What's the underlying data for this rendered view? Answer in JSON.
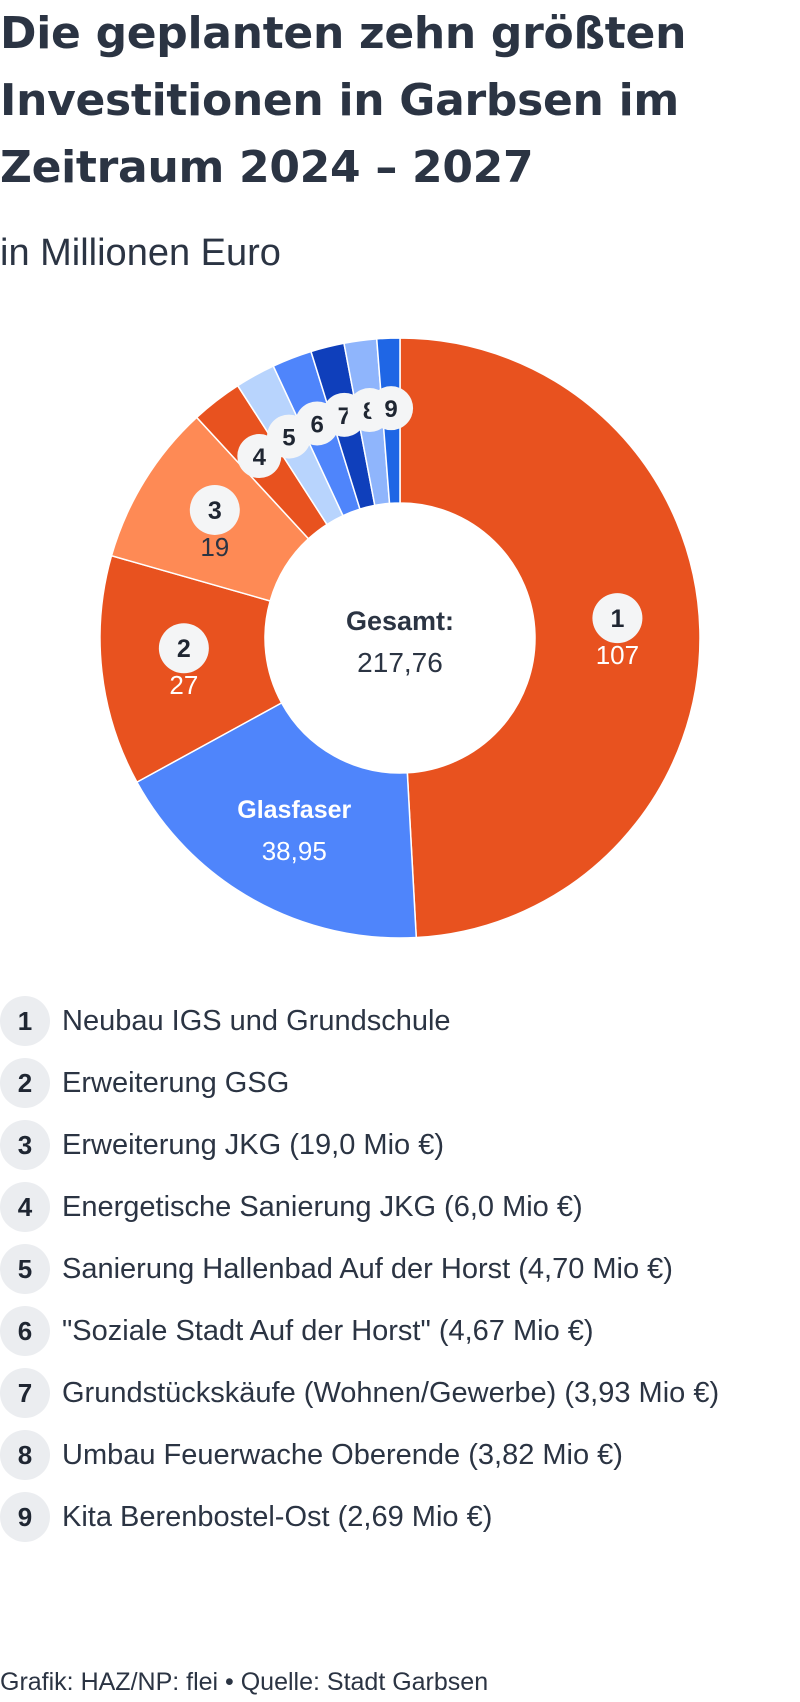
{
  "title": "Die geplanten zehn größten Investitionen in Garbsen im Zeitraum 2024 – 2027",
  "subtitle": "in Millionen Euro",
  "footer": "Grafik: HAZ/NP: flei • Quelle: Stadt Garbsen",
  "chart_data": {
    "type": "pie",
    "variant": "donut",
    "center_label": "Gesamt:",
    "total": "217,76",
    "slices": [
      {
        "key": "1",
        "value": 107,
        "value_label": "107",
        "color": "#e8521f"
      },
      {
        "key": "Glasfaser",
        "value": 38.95,
        "value_label": "38,95",
        "color": "#4f85fb"
      },
      {
        "key": "2",
        "value": 27,
        "value_label": "27",
        "color": "#e8521f"
      },
      {
        "key": "3",
        "value": 19,
        "value_label": "19",
        "color": "#fe8a55"
      },
      {
        "key": "4",
        "value": 6.0,
        "value_label": "",
        "color": "#e8521f"
      },
      {
        "key": "5",
        "value": 4.7,
        "value_label": "",
        "color": "#b8d4fd"
      },
      {
        "key": "6",
        "value": 4.67,
        "value_label": "",
        "color": "#4f85fb"
      },
      {
        "key": "7",
        "value": 3.93,
        "value_label": "",
        "color": "#0f3fbb"
      },
      {
        "key": "8",
        "value": 3.82,
        "value_label": "",
        "color": "#8fb5fc"
      },
      {
        "key": "9",
        "value": 2.69,
        "value_label": "",
        "color": "#1f66e5"
      }
    ]
  },
  "legend": [
    {
      "num": "1",
      "label": "Neubau IGS und Grundschule"
    },
    {
      "num": "2",
      "label": "Erweiterung GSG"
    },
    {
      "num": "3",
      "label": "Erweiterung JKG (19,0 Mio €)"
    },
    {
      "num": "4",
      "label": "Energetische Sanierung JKG (6,0 Mio €)"
    },
    {
      "num": "5",
      "label": "Sanierung Hallenbad Auf der Horst (4,70 Mio €)"
    },
    {
      "num": "6",
      "label": "\"Soziale Stadt Auf der Horst\" (4,67 Mio €)"
    },
    {
      "num": "7",
      "label": "Grundstückskäufe (Wohnen/Gewerbe) (3,93 Mio €)"
    },
    {
      "num": "8",
      "label": "Umbau Feuerwache Oberende (3,82 Mio €)"
    },
    {
      "num": "9",
      "label": "Kita Berenbostel-Ost (2,69 Mio €)"
    }
  ]
}
